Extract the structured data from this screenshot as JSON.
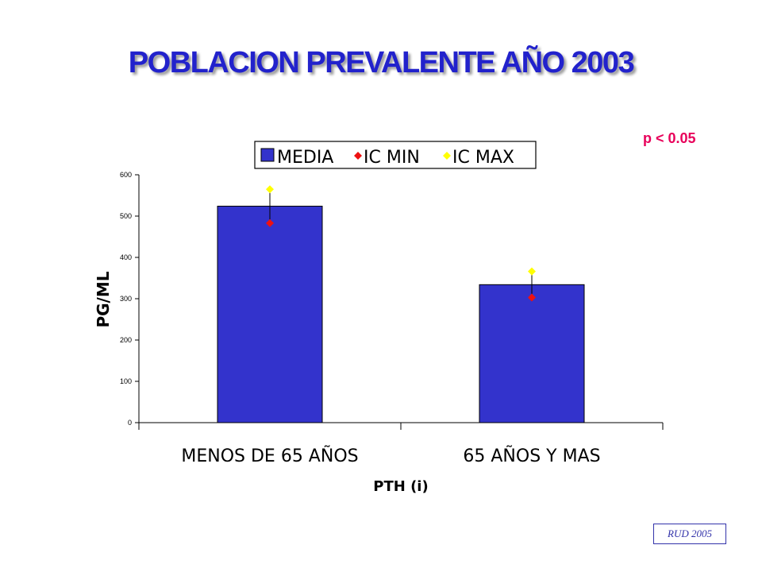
{
  "title": "POBLACION PREVALENTE AÑO 2003",
  "annotation": "p  < 0.05",
  "badge": "RUD 2005",
  "colors": {
    "title": "#2222cc",
    "bar": "#3333cc",
    "ic_min": "#ee1111",
    "ic_max": "#ffff00",
    "annotation": "#e8005a"
  },
  "chart_data": {
    "type": "bar",
    "title": "",
    "xlabel": "PTH (i)",
    "ylabel": "PG/ML",
    "categories": [
      "MENOS DE 65 AÑOS",
      "65 AÑOS Y MAS"
    ],
    "ylim": [
      0,
      600
    ],
    "yticks": [
      0,
      100,
      200,
      300,
      400,
      500,
      600
    ],
    "series": [
      {
        "name": "MEDIA",
        "kind": "bar",
        "values": [
          524,
          334
        ]
      },
      {
        "name": "IC MIN",
        "kind": "marker",
        "marker": "diamond",
        "values": [
          483,
          303
        ]
      },
      {
        "name": "IC MAX",
        "kind": "marker",
        "marker": "diamond",
        "values": [
          565,
          366
        ]
      }
    ],
    "legend_position": "top",
    "grid": false
  }
}
